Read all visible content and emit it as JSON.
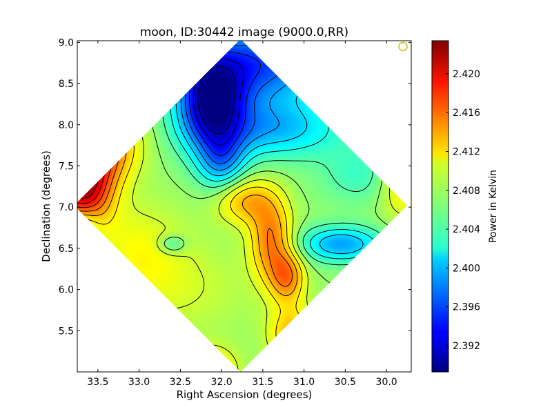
{
  "chart_data": {
    "type": "heatmap",
    "title": "moon, ID:30442 image (9000.0,RR)",
    "xlabel": "Right Ascension (degrees)",
    "ylabel": "Declination (degrees)",
    "x_reversed": true,
    "xlim": [
      33.75,
      29.7
    ],
    "ylim": [
      5.0,
      9.02
    ],
    "xticks": [
      33.5,
      33.0,
      32.5,
      32.0,
      31.5,
      31.0,
      30.5,
      30.0
    ],
    "xtick_labels": [
      "33.5",
      "33.0",
      "32.5",
      "32.0",
      "31.5",
      "31.0",
      "30.5",
      "30.0"
    ],
    "yticks": [
      5.5,
      6.0,
      6.5,
      7.0,
      7.5,
      8.0,
      8.5,
      9.0
    ],
    "ytick_labels": [
      "5.5",
      "6.0",
      "6.5",
      "7.0",
      "7.5",
      "8.0",
      "8.5",
      "9.0"
    ],
    "map_region": {
      "shape": "diamond",
      "center": [
        31.77,
        7.02
      ],
      "half_width_ra": 2.02,
      "half_height_dec": 2.02
    },
    "colorbar": {
      "label": "Power in Kelvin",
      "min": 2.3893,
      "max": 2.4234,
      "colormap": "jet",
      "ticks": [
        2.392,
        2.396,
        2.4,
        2.404,
        2.408,
        2.412,
        2.416,
        2.42
      ],
      "tick_labels": [
        "2.392",
        "2.396",
        "2.400",
        "2.404",
        "2.408",
        "2.412",
        "2.416",
        "2.420"
      ]
    },
    "background_level": 2.407,
    "features": [
      {
        "ra": 32.12,
        "dec": 8.3,
        "value": -0.016,
        "sx": 0.28,
        "sy": 0.4,
        "kind": "trough"
      },
      {
        "ra": 31.5,
        "dec": 8.75,
        "value": -0.011,
        "sx": 0.55,
        "sy": 0.35,
        "kind": "trough"
      },
      {
        "ra": 32.0,
        "dec": 7.55,
        "value": -0.007,
        "sx": 0.2,
        "sy": 0.25,
        "kind": "trough"
      },
      {
        "ra": 31.4,
        "dec": 7.95,
        "value": -0.007,
        "sx": 0.6,
        "sy": 0.25,
        "kind": "trough"
      },
      {
        "ra": 30.55,
        "dec": 6.55,
        "value": -0.008,
        "sx": 0.35,
        "sy": 0.15,
        "kind": "trough"
      },
      {
        "ra": 33.7,
        "dec": 6.8,
        "value": -0.005,
        "sx": 0.15,
        "sy": 0.15,
        "kind": "trough"
      },
      {
        "ra": 33.7,
        "dec": 7.25,
        "value": 0.015,
        "sx": 0.25,
        "sy": 0.35,
        "kind": "peak"
      },
      {
        "ra": 33.45,
        "dec": 7.75,
        "value": 0.009,
        "sx": 0.3,
        "sy": 0.3,
        "kind": "peak"
      },
      {
        "ra": 31.72,
        "dec": 7.08,
        "value": 0.006,
        "sx": 0.25,
        "sy": 0.2,
        "kind": "peak"
      },
      {
        "ra": 31.4,
        "dec": 6.6,
        "value": 0.008,
        "sx": 0.18,
        "sy": 0.35,
        "kind": "peak"
      },
      {
        "ra": 31.2,
        "dec": 6.15,
        "value": 0.007,
        "sx": 0.15,
        "sy": 0.22,
        "kind": "peak"
      },
      {
        "ra": 31.15,
        "dec": 5.45,
        "value": 0.006,
        "sx": 0.2,
        "sy": 0.25,
        "kind": "peak"
      },
      {
        "ra": 32.1,
        "dec": 5.0,
        "value": 0.006,
        "sx": 0.2,
        "sy": 0.2,
        "kind": "peak"
      },
      {
        "ra": 29.8,
        "dec": 7.3,
        "value": 0.005,
        "sx": 0.2,
        "sy": 0.3,
        "kind": "peak"
      },
      {
        "ra": 33.0,
        "dec": 6.5,
        "value": 0.003,
        "sx": 0.4,
        "sy": 0.4,
        "kind": "peak"
      },
      {
        "ra": 32.5,
        "dec": 6.0,
        "value": 0.002,
        "sx": 0.6,
        "sy": 0.4,
        "kind": "peak"
      },
      {
        "ra": 32.6,
        "dec": 6.55,
        "value": -0.004,
        "sx": 0.12,
        "sy": 0.08,
        "kind": "trough"
      },
      {
        "ra": 30.3,
        "dec": 7.4,
        "value": -0.003,
        "sx": 0.35,
        "sy": 0.25,
        "kind": "trough"
      }
    ],
    "contour_levels": [
      2.391,
      2.393,
      2.395,
      2.397,
      2.399,
      2.401,
      2.403,
      2.405,
      2.407,
      2.409,
      2.411,
      2.413,
      2.415,
      2.417,
      2.419,
      2.421
    ],
    "beam_marker": {
      "ra": 29.8,
      "dec": 8.95,
      "color": "#bfbf00",
      "shape": "circle"
    }
  }
}
